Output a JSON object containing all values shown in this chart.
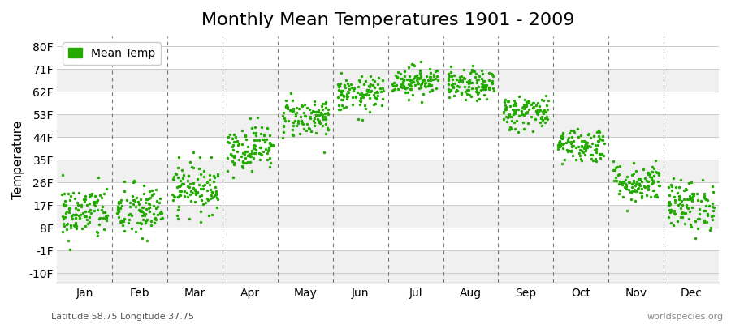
{
  "title": "Monthly Mean Temperatures 1901 - 2009",
  "ylabel": "Temperature",
  "watermark_right": "worldspecies.org",
  "watermark_left": "Latitude 58.75 Longitude 37.75",
  "legend_label": "Mean Temp",
  "dot_color": "#22aa00",
  "dot_size": 2.5,
  "bg_color": "#ffffff",
  "band_colors": [
    "#f0f0f0",
    "#ffffff"
  ],
  "yticks": [
    -10,
    -1,
    8,
    17,
    26,
    35,
    44,
    53,
    62,
    71,
    80
  ],
  "ylim": [
    -14,
    84
  ],
  "months": [
    "Jan",
    "Feb",
    "Mar",
    "Apr",
    "May",
    "Jun",
    "Jul",
    "Aug",
    "Sep",
    "Oct",
    "Nov",
    "Dec"
  ],
  "month_means_F": [
    14.0,
    14.5,
    24.0,
    40.0,
    52.0,
    61.0,
    66.5,
    64.5,
    54.0,
    41.0,
    26.0,
    17.0
  ],
  "month_stds_F": [
    5.5,
    5.5,
    5.0,
    4.5,
    4.0,
    3.5,
    3.0,
    3.0,
    3.5,
    3.5,
    4.0,
    5.0
  ],
  "num_years": 109,
  "random_seed": 42,
  "vline_color": "#777777",
  "grid_color": "#cccccc",
  "title_fontsize": 16,
  "label_fontsize": 11,
  "tick_fontsize": 10,
  "watermark_fontsize": 8
}
